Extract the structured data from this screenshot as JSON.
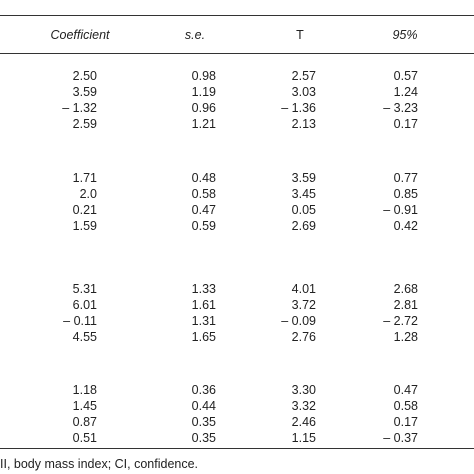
{
  "table": {
    "header": [
      "Coefficient",
      "s.e.",
      "T",
      "95%"
    ],
    "groups": [
      [
        [
          "2.50",
          "0.98",
          "2.57",
          "0.57"
        ],
        [
          "3.59",
          "1.19",
          "3.03",
          "1.24"
        ],
        [
          "– 1.32",
          "0.96",
          "– 1.36",
          "– 3.23"
        ],
        [
          "2.59",
          "1.21",
          "2.13",
          "0.17"
        ]
      ],
      [
        [
          "1.71",
          "0.48",
          "3.59",
          "0.77"
        ],
        [
          "2.0",
          "0.58",
          "3.45",
          "0.85"
        ],
        [
          "0.21",
          "0.47",
          "0.05",
          "– 0.91"
        ],
        [
          "1.59",
          "0.59",
          "2.69",
          "0.42"
        ]
      ],
      [
        [
          "5.31",
          "1.33",
          "4.01",
          "2.68"
        ],
        [
          "6.01",
          "1.61",
          "3.72",
          "2.81"
        ],
        [
          "– 0.11",
          "1.31",
          "– 0.09",
          "– 2.72"
        ],
        [
          "4.55",
          "1.65",
          "2.76",
          "1.28"
        ]
      ],
      [
        [
          "1.18",
          "0.36",
          "3.30",
          "0.47"
        ],
        [
          "1.45",
          "0.44",
          "3.32",
          "0.58"
        ],
        [
          "0.87",
          "0.35",
          "2.46",
          "0.17"
        ],
        [
          "0.51",
          "0.35",
          "1.15",
          "– 0.37"
        ]
      ]
    ]
  },
  "footnote": "II, body mass index; CI, confidence."
}
